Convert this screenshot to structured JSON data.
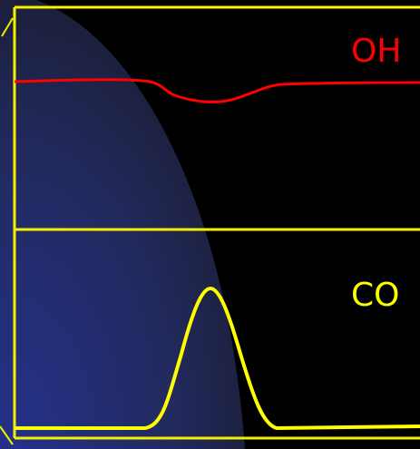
{
  "panels": [
    {
      "label": "OH"
    },
    {
      "label": "CO"
    }
  ]
}
